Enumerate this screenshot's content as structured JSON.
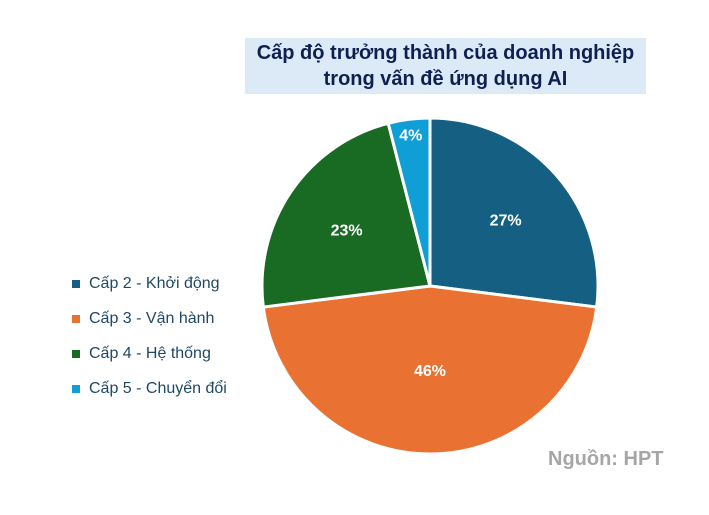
{
  "chart_data": {
    "type": "pie",
    "title": "Cấp độ trưởng thành của doanh nghiệp trong vấn đề ứng dụng AI",
    "title_lines": [
      "Cấp độ trưởng thành của doanh nghiệp",
      "trong vấn đề ứng dụng AI"
    ],
    "categories": [
      "Cấp 2 - Khởi động",
      "Cấp 3 - Vận hành",
      "Cấp 4 - Hệ thống",
      "Cấp 5 - Chuyển đổi"
    ],
    "values": [
      27,
      46,
      23,
      4
    ],
    "data_labels": [
      "27%",
      "46%",
      "23%",
      "4%"
    ],
    "colors": [
      "#156082",
      "#E97132",
      "#196B24",
      "#0F9ED5"
    ],
    "start_angle_deg": 0,
    "direction": "clockwise",
    "legend_position": "left",
    "label_radius_fraction": [
      0.6,
      0.5,
      0.6,
      0.91
    ],
    "slice_border_color": "#FFFFFF",
    "label_color": "#FFFFFF",
    "title_bg": "#DCE9F6",
    "title_color": "#0F2050",
    "legend_text_color": "#1F4866",
    "source": "Nguồn: HPT",
    "source_color": "#A6A6A6"
  }
}
